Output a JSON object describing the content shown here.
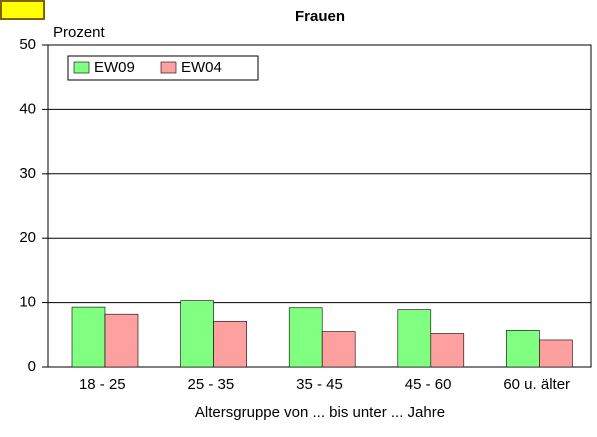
{
  "chart_data": {
    "type": "bar",
    "title": "Frauen",
    "y_label": "Prozent",
    "x_label": "Altersgruppe von ... bis unter ... Jahre",
    "categories": [
      "18 - 25",
      "25 - 35",
      "35 - 45",
      "45 - 60",
      "60 u. älter"
    ],
    "series": [
      {
        "name": "EW09",
        "color": "#80ff80",
        "values": [
          9.3,
          10.3,
          9.2,
          8.9,
          5.7
        ]
      },
      {
        "name": "EW04",
        "color": "#ffa0a0",
        "values": [
          8.2,
          7.1,
          5.5,
          5.2,
          4.2
        ]
      }
    ],
    "ylim": [
      0,
      50
    ],
    "yticks": [
      0,
      10,
      20,
      30,
      40,
      50
    ],
    "grid": true,
    "legend": "upper left"
  }
}
